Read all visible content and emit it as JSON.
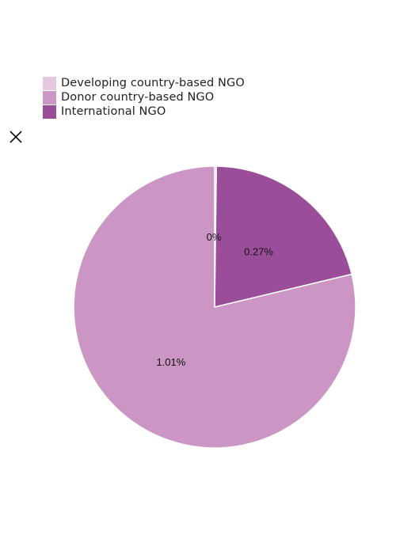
{
  "close_icon": "close-icon",
  "chart_data": {
    "type": "pie",
    "categories": [
      "Developing country-based NGO",
      "Donor country-based NGO",
      "International NGO"
    ],
    "values": [
      0.0026,
      1.01,
      0.27
    ],
    "labels": [
      "0%",
      "1.01%",
      "0.27%"
    ],
    "colors": [
      "#e6c9e1",
      "#cb96c3",
      "#9a4e9a"
    ],
    "legend_position": "top-left"
  }
}
